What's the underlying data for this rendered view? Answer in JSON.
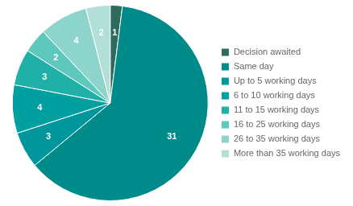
{
  "chart_data": {
    "type": "pie",
    "categories": [
      "Decision awaited",
      "Same day",
      "Up to 5 working days",
      "6 to 10 working days",
      "11 to 15 working days",
      "16 to 25 working days",
      "26 to 35 working days",
      "More than 35 working days"
    ],
    "values": [
      1,
      31,
      3,
      4,
      3,
      2,
      4,
      2
    ],
    "colors": [
      "#2d6b5e",
      "#008b8b",
      "#00969b",
      "#009fa0",
      "#20b0a8",
      "#5ec8bc",
      "#8dd4cc",
      "#b2e0d8"
    ],
    "data_labels": true,
    "legend": "right"
  }
}
